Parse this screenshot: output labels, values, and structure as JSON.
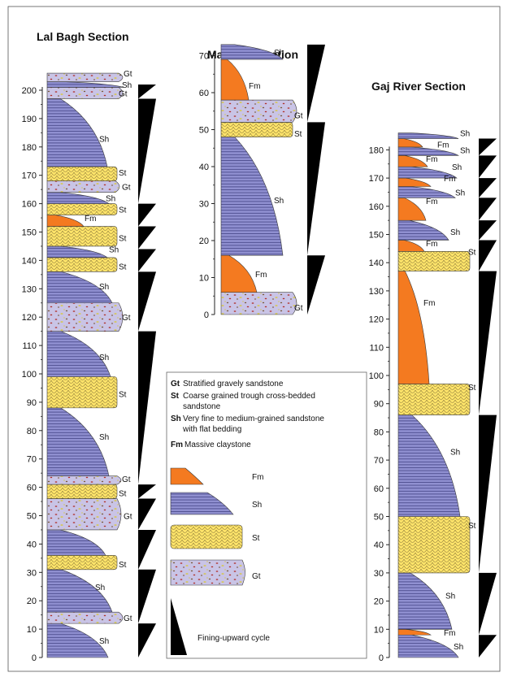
{
  "titles": {
    "lal_bagh": "Lal Bagh Section",
    "manchar": "Manchar Section",
    "gaj": "Gaj River Section"
  },
  "colors": {
    "fm": "#f47a20",
    "sh": "#8f8fd0",
    "sh_line": "#2c2c6c",
    "st": "#ffe46a",
    "st_line": "#8a7a3a",
    "gt": "#c9c4e6",
    "outline": "#3a3a3a",
    "cycle": "#000000"
  },
  "icons": {
    "cycle": "fining-upward-triangle",
    "gt_clasts": "pebble-speckles",
    "st_pattern": "cross-bed-scales"
  },
  "sections": [
    {
      "key": "lal_bagh",
      "ticks": [
        "0",
        "10",
        "20",
        "30",
        "40",
        "50",
        "60",
        "70",
        "80",
        "90",
        "100",
        "110",
        "120",
        "130",
        "140",
        "150",
        "160",
        "170",
        "180",
        "190",
        "200"
      ]
    },
    {
      "key": "manchar",
      "ticks": [
        "0",
        "10",
        "20",
        "30",
        "40",
        "50",
        "60",
        "70"
      ]
    },
    {
      "key": "gaj",
      "ticks": [
        "0",
        "10",
        "20",
        "30",
        "40",
        "50",
        "60",
        "70",
        "80",
        "90",
        "100",
        "110",
        "120",
        "130",
        "140",
        "150",
        "160",
        "170",
        "180"
      ]
    }
  ],
  "facies_labels": {
    "Gt": "Gt",
    "St": "St",
    "Sh": "Sh",
    "Fm": "Fm"
  },
  "legend": {
    "entries": [
      {
        "code": "Gt",
        "lines": [
          "Stratified gravely sandstone"
        ]
      },
      {
        "code": "St",
        "lines": [
          "Coarse grained trough cross-bedded",
          "sandstone"
        ]
      },
      {
        "code": "Sh",
        "lines": [
          "Very fine to medium-grained sandstone",
          "with flat bedding"
        ]
      },
      {
        "code": "Fm",
        "lines": [
          "Massive claystone"
        ]
      }
    ],
    "swatches": [
      {
        "code": "Fm",
        "label": "Fm"
      },
      {
        "code": "Sh",
        "label": "Sh"
      },
      {
        "code": "St",
        "label": "St"
      },
      {
        "code": "Gt",
        "label": "Gt"
      }
    ],
    "cycle_label": "Fining-upward cycle"
  }
}
